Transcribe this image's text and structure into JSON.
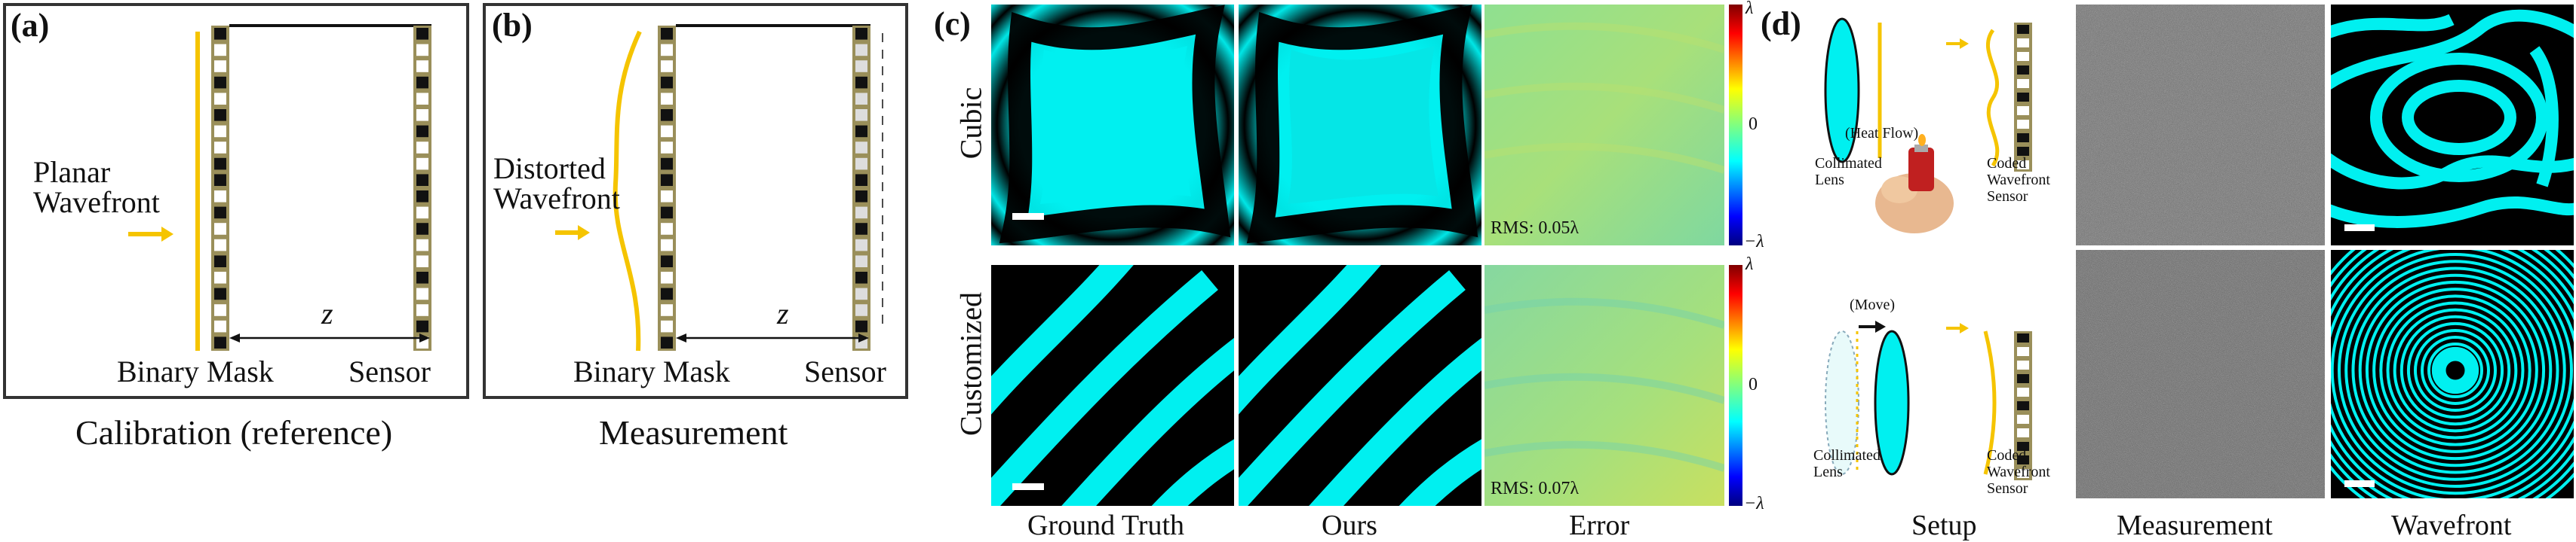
{
  "figure": {
    "panel_a": {
      "letter": "(a)",
      "wavefront_label_line1": "Planar",
      "wavefront_label_line2": "Wavefront",
      "mask_label": "Binary Mask",
      "sensor_label": "Sensor",
      "distance_symbol": "z",
      "caption": "Calibration (reference)"
    },
    "panel_b": {
      "letter": "(b)",
      "wavefront_label_line1": "Distorted",
      "wavefront_label_line2": "Wavefront",
      "mask_label": "Binary Mask",
      "sensor_label": "Sensor",
      "distance_symbol": "z",
      "caption": "Measurement"
    },
    "panel_c": {
      "letter": "(c)",
      "rows": [
        "Cubic",
        "Customized"
      ],
      "columns": [
        "Ground Truth",
        "Ours",
        "Error"
      ],
      "rms": [
        "RMS: 0.05λ",
        "RMS: 0.07λ"
      ],
      "colorbar_ticks": [
        "λ",
        "0",
        "−λ"
      ]
    },
    "panel_d": {
      "letter": "(d)",
      "top_annotation": "(Heat Flow)",
      "bottom_annotation": "(Move)",
      "lens_label_line1": "Collimated",
      "lens_label_line2": "Lens",
      "sensor_label_line1": "Coded",
      "sensor_label_line2": "Wavefront",
      "sensor_label_line3": "Sensor",
      "columns": [
        "Setup",
        "Measurement",
        "Wavefront"
      ]
    },
    "colors": {
      "wavefront_yellow": "#f5c400",
      "fringe_cyan": "#00f0f0",
      "frame_gray": "#333333",
      "sensor_olive": "#9a8f5a"
    }
  }
}
